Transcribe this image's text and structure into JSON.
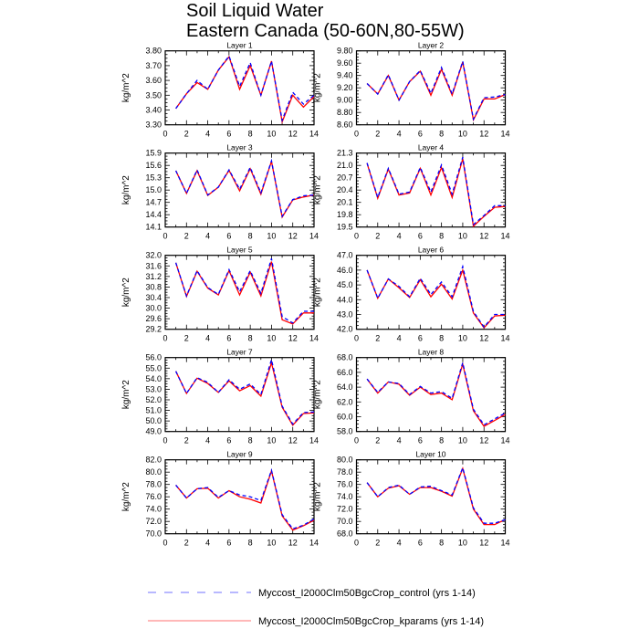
{
  "chart_data": {
    "type": "line",
    "title": "Soil Liquid Water",
    "subtitle": "Eastern Canada (50-60N,80-55W)",
    "legend_placement": "bottom",
    "series_styles": [
      {
        "name": "Myccost_I2000Clm50BgcCrop_control (yrs 1-14)",
        "color": "#0000ff",
        "dash": "dashed"
      },
      {
        "name": "Myccost_I2000Clm50BgcCrop_kparams (yrs 1-14)",
        "color": "#ff0000",
        "dash": "solid"
      }
    ],
    "legend_colors": {
      "control": "#7070ff",
      "kparams": "#ff7070"
    },
    "x": [
      1,
      2,
      3,
      4,
      5,
      6,
      7,
      8,
      9,
      10,
      11,
      12,
      13,
      14
    ],
    "xlim": [
      0,
      14
    ],
    "xticks": [
      "0",
      "2",
      "4",
      "6",
      "8",
      "10",
      "12",
      "14"
    ],
    "panels": [
      {
        "title": "Layer 1",
        "ylabel": "kg/m^2",
        "ylim": [
          3.3,
          3.8
        ],
        "yticks": [
          "3.30",
          "3.40",
          "3.50",
          "3.60",
          "3.70",
          "3.80"
        ],
        "control": [
          3.41,
          3.51,
          3.6,
          3.54,
          3.67,
          3.765,
          3.56,
          3.72,
          3.5,
          3.73,
          3.33,
          3.52,
          3.44,
          3.5
        ],
        "kparams": [
          3.41,
          3.51,
          3.585,
          3.54,
          3.67,
          3.76,
          3.54,
          3.7,
          3.5,
          3.73,
          3.32,
          3.5,
          3.42,
          3.49
        ]
      },
      {
        "title": "Layer 2",
        "ylabel": "kg/m^2",
        "ylim": [
          8.6,
          9.8
        ],
        "yticks": [
          "8.60",
          "8.80",
          "9.00",
          "9.20",
          "9.40",
          "9.60",
          "9.80"
        ],
        "control": [
          9.27,
          9.1,
          9.41,
          9.0,
          9.3,
          9.48,
          9.11,
          9.53,
          9.1,
          9.63,
          8.69,
          9.04,
          9.05,
          9.09
        ],
        "kparams": [
          9.27,
          9.1,
          9.4,
          9.0,
          9.3,
          9.47,
          9.08,
          9.5,
          9.08,
          9.62,
          8.68,
          9.02,
          9.02,
          9.09
        ]
      },
      {
        "title": "Layer 3",
        "ylabel": "kg/m^2",
        "ylim": [
          14.1,
          15.9
        ],
        "yticks": [
          "14.1",
          "14.4",
          "14.7",
          "15.0",
          "15.3",
          "15.6",
          "15.9"
        ],
        "control": [
          15.47,
          14.92,
          15.49,
          14.88,
          15.07,
          15.49,
          15.02,
          15.55,
          14.93,
          15.71,
          14.36,
          14.77,
          14.86,
          14.88
        ],
        "kparams": [
          15.47,
          14.92,
          15.47,
          14.87,
          15.07,
          15.48,
          14.98,
          15.52,
          14.9,
          15.7,
          14.34,
          14.76,
          14.83,
          14.88
        ]
      },
      {
        "title": "Layer 4",
        "ylabel": "kg/m^2",
        "ylim": [
          19.5,
          21.3
        ],
        "yticks": [
          "19.5",
          "19.8",
          "20.1",
          "20.4",
          "20.7",
          "21.0",
          "21.3"
        ],
        "control": [
          21.06,
          20.22,
          20.93,
          20.3,
          20.35,
          20.95,
          20.35,
          21.01,
          20.3,
          21.2,
          19.56,
          19.78,
          20.02,
          20.02
        ],
        "kparams": [
          21.05,
          20.2,
          20.91,
          20.28,
          20.33,
          20.93,
          20.28,
          20.95,
          20.22,
          21.16,
          19.52,
          19.76,
          19.98,
          20.0
        ]
      },
      {
        "title": "Layer 5",
        "ylabel": "kg/m^2",
        "ylim": [
          29.2,
          32.0
        ],
        "yticks": [
          "29.2",
          "29.6",
          "30.0",
          "30.4",
          "30.8",
          "31.2",
          "31.6",
          "32.0"
        ],
        "control": [
          31.72,
          30.46,
          31.42,
          30.78,
          30.52,
          31.46,
          30.62,
          31.42,
          30.56,
          31.88,
          29.68,
          29.44,
          29.88,
          29.88
        ],
        "kparams": [
          31.72,
          30.44,
          31.4,
          30.76,
          30.5,
          31.42,
          30.5,
          31.36,
          30.46,
          31.76,
          29.56,
          29.4,
          29.82,
          29.82
        ]
      },
      {
        "title": "Layer 6",
        "ylabel": "kg/m^2",
        "ylim": [
          42.0,
          47.0
        ],
        "yticks": [
          "42.0",
          "43.0",
          "44.0",
          "45.0",
          "46.0",
          "47.0"
        ],
        "control": [
          46.0,
          44.1,
          45.4,
          44.9,
          44.2,
          45.45,
          44.35,
          45.2,
          44.2,
          46.25,
          43.2,
          42.15,
          43.0,
          43.0
        ],
        "kparams": [
          46.0,
          44.1,
          45.4,
          44.8,
          44.15,
          45.35,
          44.2,
          45.05,
          44.05,
          46.0,
          43.1,
          42.1,
          42.9,
          42.95
        ]
      },
      {
        "title": "Layer 7",
        "ylabel": "kg/m^2",
        "ylim": [
          49.0,
          56.0
        ],
        "yticks": [
          "49.0",
          "50.0",
          "51.0",
          "52.0",
          "53.0",
          "54.0",
          "55.0",
          "56.0"
        ],
        "control": [
          54.7,
          52.6,
          54.1,
          53.65,
          52.7,
          53.9,
          53.0,
          53.5,
          52.5,
          55.8,
          51.4,
          49.7,
          50.8,
          50.85
        ],
        "kparams": [
          54.7,
          52.6,
          54.05,
          53.55,
          52.7,
          53.8,
          52.85,
          53.35,
          52.35,
          55.5,
          51.3,
          49.6,
          50.7,
          50.75
        ]
      },
      {
        "title": "Layer 8",
        "ylabel": "kg/m^2",
        "ylim": [
          58.0,
          68.0
        ],
        "yticks": [
          "58.0",
          "60.0",
          "62.0",
          "64.0",
          "66.0",
          "68.0"
        ],
        "control": [
          65.1,
          63.3,
          64.7,
          64.5,
          63.0,
          64.1,
          63.2,
          63.4,
          62.5,
          67.3,
          61.0,
          58.9,
          59.7,
          60.5
        ],
        "kparams": [
          65.1,
          63.2,
          64.7,
          64.4,
          62.9,
          64.0,
          63.0,
          63.2,
          62.3,
          67.1,
          60.8,
          58.7,
          59.5,
          60.3
        ]
      },
      {
        "title": "Layer 9",
        "ylabel": "kg/m^2",
        "ylim": [
          70.0,
          82.0
        ],
        "yticks": [
          "70.0",
          "72.0",
          "74.0",
          "76.0",
          "78.0",
          "80.0",
          "82.0"
        ],
        "control": [
          77.9,
          75.8,
          77.3,
          77.5,
          75.9,
          77.0,
          76.3,
          76.0,
          75.4,
          80.3,
          73.1,
          70.8,
          71.4,
          72.4
        ],
        "kparams": [
          77.9,
          75.8,
          77.3,
          77.4,
          75.8,
          77.0,
          76.0,
          75.6,
          75.0,
          80.2,
          72.9,
          70.6,
          71.3,
          72.2
        ]
      },
      {
        "title": "Layer 10",
        "ylabel": "kg/m^2",
        "ylim": [
          68.0,
          80.0
        ],
        "yticks": [
          "68.0",
          "70.0",
          "72.0",
          "74.0",
          "76.0",
          "78.0",
          "80.0"
        ],
        "control": [
          76.3,
          74.0,
          75.5,
          75.9,
          74.4,
          75.6,
          75.7,
          75.0,
          74.3,
          78.7,
          72.2,
          69.7,
          69.7,
          70.3
        ],
        "kparams": [
          76.3,
          74.0,
          75.4,
          75.8,
          74.4,
          75.5,
          75.5,
          74.9,
          74.1,
          78.6,
          72.0,
          69.5,
          69.5,
          70.3
        ]
      }
    ]
  }
}
